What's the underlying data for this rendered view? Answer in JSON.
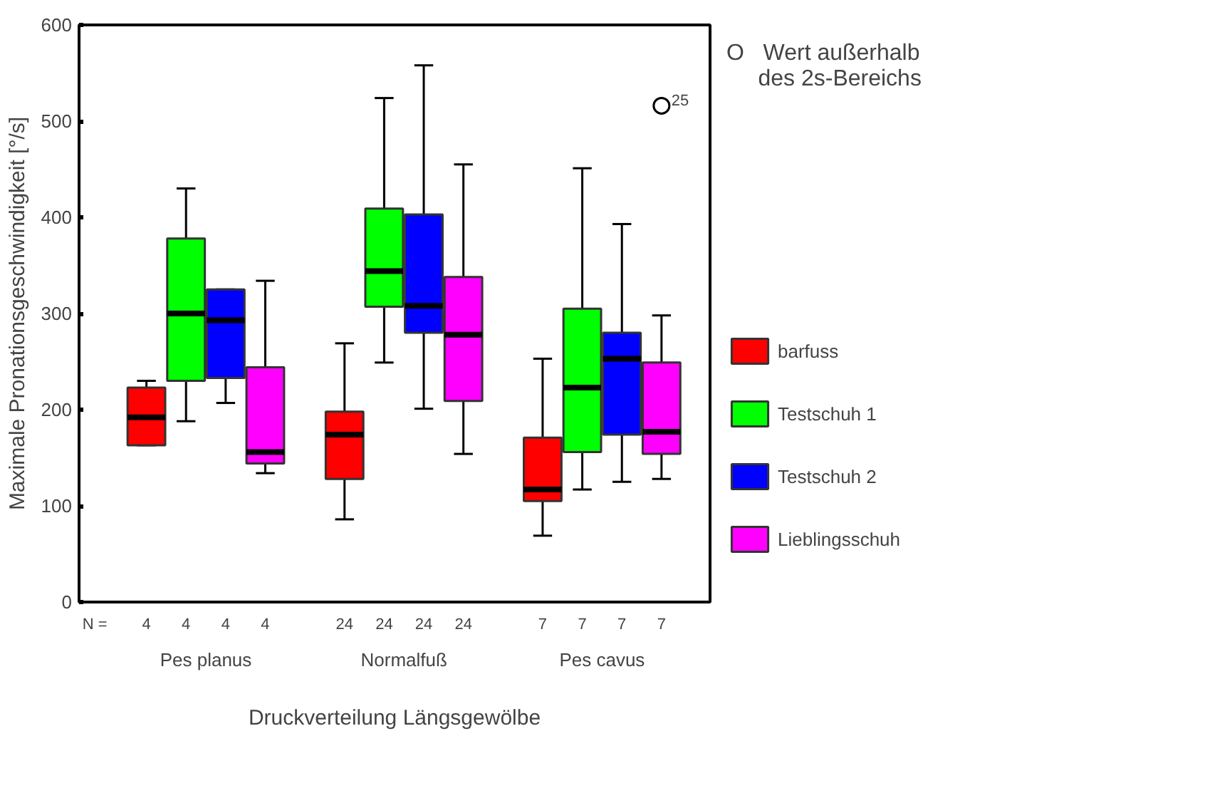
{
  "chart_data": {
    "type": "box",
    "categories": [
      "Pes planus",
      "Normalfuß",
      "Pes cavus"
    ],
    "xlabel": "Druckverteilung Längsgewölbe",
    "ylabel": "Maximale Pronationsgeschwindigkeit [°/s]",
    "ylim": [
      0,
      600
    ],
    "yticks": [
      0,
      100,
      200,
      300,
      400,
      500,
      600
    ],
    "grid": false,
    "legend": "right",
    "series": [
      {
        "name": "barfuss",
        "color": "#ff0000",
        "boxes": [
          {
            "low": 163,
            "q1": 163,
            "median": 192,
            "q3": 223,
            "high": 230
          },
          {
            "low": 86,
            "q1": 128,
            "median": 174,
            "q3": 198,
            "high": 269
          },
          {
            "low": 69,
            "q1": 105,
            "median": 117,
            "q3": 171,
            "high": 253
          }
        ]
      },
      {
        "name": "Testschuh 1",
        "color": "#00ff00",
        "boxes": [
          {
            "low": 188,
            "q1": 230,
            "median": 300,
            "q3": 378,
            "high": 430
          },
          {
            "low": 249,
            "q1": 307,
            "median": 344,
            "q3": 409,
            "high": 524
          },
          {
            "low": 117,
            "q1": 156,
            "median": 223,
            "q3": 305,
            "high": 451
          }
        ]
      },
      {
        "name": "Testschuh 2",
        "color": "#0000ff",
        "boxes": [
          {
            "low": 207,
            "q1": 233,
            "median": 293,
            "q3": 325,
            "high": 325
          },
          {
            "low": 201,
            "q1": 280,
            "median": 308,
            "q3": 403,
            "high": 558
          },
          {
            "low": 125,
            "q1": 174,
            "median": 253,
            "q3": 280,
            "high": 393
          }
        ]
      },
      {
        "name": "Lieblingsschuh",
        "color": "#ff00ff",
        "boxes": [
          {
            "low": 134,
            "q1": 144,
            "median": 156,
            "q3": 244,
            "high": 334
          },
          {
            "low": 154,
            "q1": 209,
            "median": 278,
            "q3": 338,
            "high": 455
          },
          {
            "low": 128,
            "q1": 154,
            "median": 177,
            "q3": 249,
            "high": 298,
            "outliers": [
              516
            ]
          }
        ]
      }
    ],
    "annotations": [
      "O   Wert außerhalb\n     des 2s-Bereichs",
      "N =",
      "4",
      "4",
      "4",
      "4",
      "24",
      "24",
      "24",
      "24",
      "7",
      "7",
      "7",
      "7",
      "25"
    ]
  }
}
